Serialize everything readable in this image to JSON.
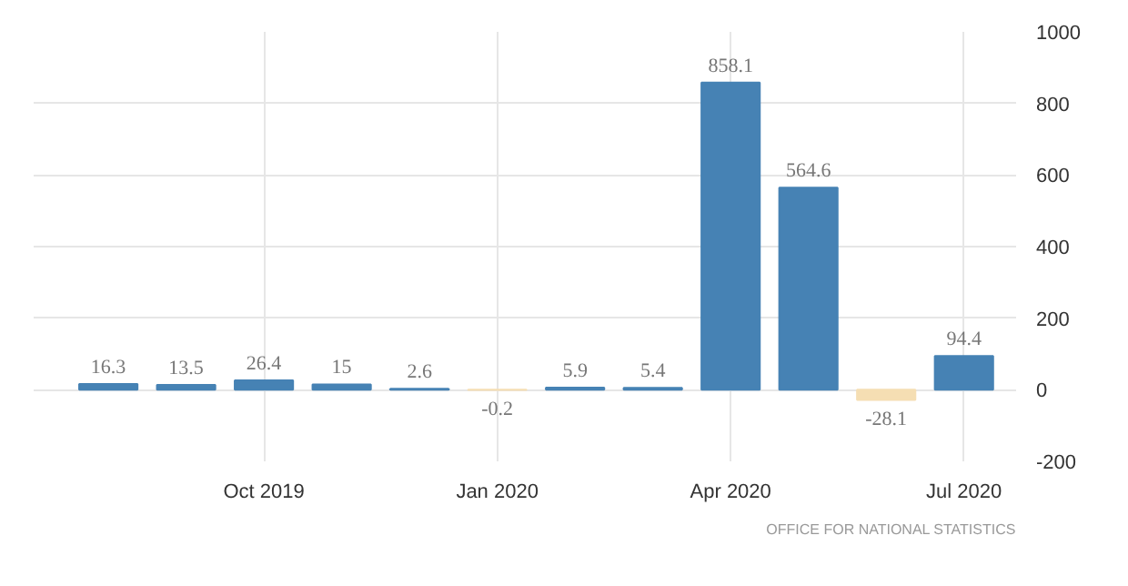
{
  "chart_data": {
    "type": "bar",
    "categories": [
      null,
      null,
      "Oct 2019",
      null,
      null,
      "Jan 2020",
      null,
      null,
      "Apr 2020",
      null,
      null,
      "Jul 2020"
    ],
    "values": [
      16.3,
      13.5,
      26.4,
      15,
      2.6,
      -0.2,
      5.9,
      5.4,
      858.1,
      564.6,
      -28.1,
      94.4
    ],
    "colors": [
      "#4682b4",
      "#4682b4",
      "#4682b4",
      "#4682b4",
      "#4682b4",
      "#f5deb3",
      "#4682b4",
      "#4682b4",
      "#4682b4",
      "#4682b4",
      "#f5deb3",
      "#4682b4"
    ],
    "ylim": [
      -200,
      1000
    ],
    "yticks": [
      -200,
      0,
      200,
      400,
      600,
      800,
      1000
    ],
    "grid": true,
    "data_labels": true,
    "annotations": [
      "OFFICE FOR NATIONAL STATISTICS"
    ]
  }
}
